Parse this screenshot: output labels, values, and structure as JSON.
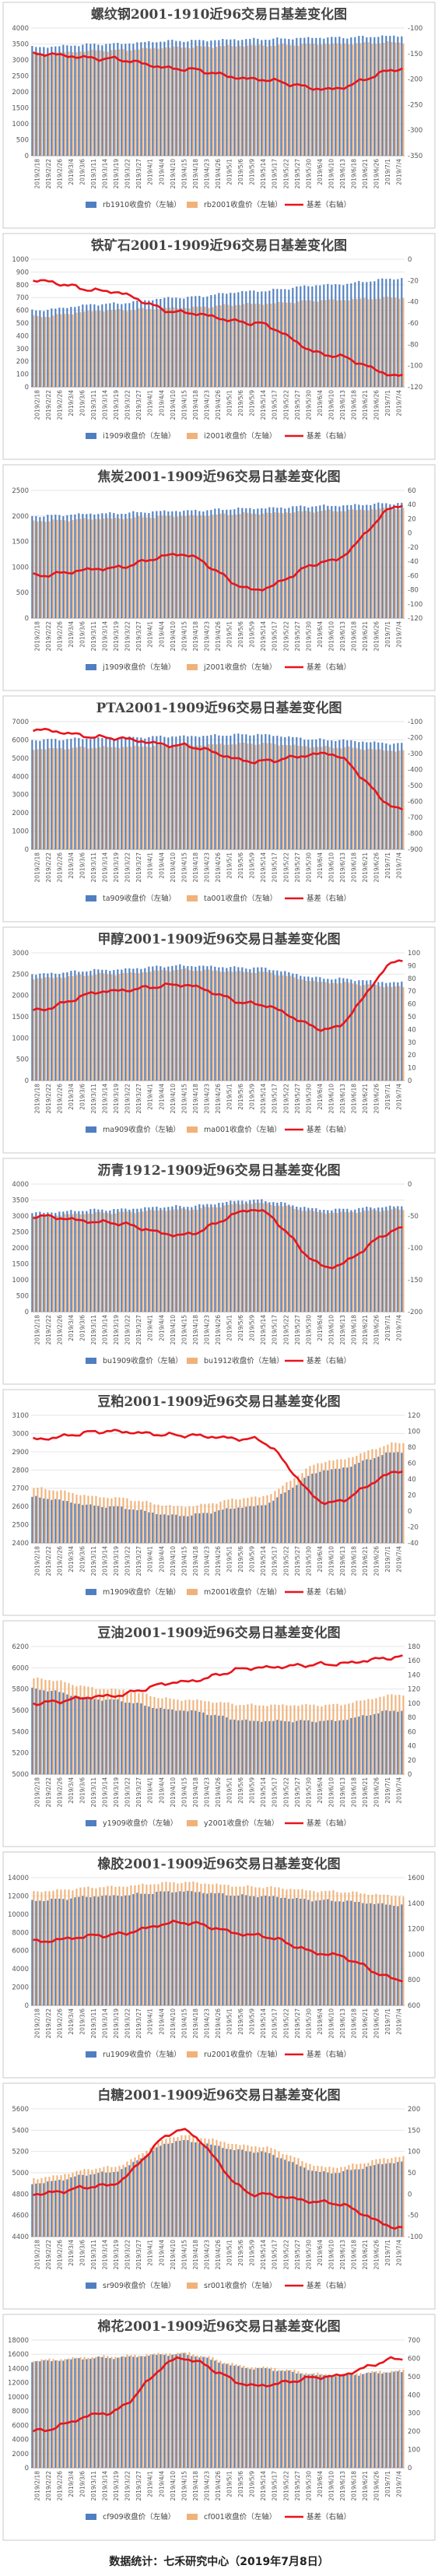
{
  "footer": "数据统计：七禾研究中心（2019年7月8日）",
  "colors": {
    "left_series_a": "#4f7fc0",
    "left_series_b": "#f0b27a",
    "basis_line": "#e8141b",
    "border": "#c9c9c9",
    "grid": "#e6e6e6",
    "title_text": "#444444"
  },
  "x_dates": [
    "2019/2/18",
    "2019/2/22",
    "2019/2/26",
    "2019/3/4",
    "2019/3/6",
    "2019/3/11",
    "2019/3/14",
    "2019/3/19",
    "2019/3/22",
    "2019/3/27",
    "2019/4/1",
    "2019/4/4",
    "2019/4/10",
    "2019/4/15",
    "2019/4/18",
    "2019/4/23",
    "2019/4/26",
    "2019/5/1",
    "2019/5/6",
    "2019/5/9",
    "2019/5/14",
    "2019/5/17",
    "2019/5/22",
    "2019/5/27",
    "2019/5/30",
    "2019/6/4",
    "2019/6/10",
    "2019/6/13",
    "2019/6/18",
    "2019/6/21",
    "2019/6/26",
    "2019/7/1",
    "2019/7/4"
  ],
  "chart_data": [
    {
      "type": "bar+line",
      "title": "螺纹钢2001-1910近96交易日基差变化图",
      "legend": [
        "rb1910收盘价（左轴）",
        "rb2001收盘价（左轴）",
        "基差（右轴）"
      ],
      "left_axis": {
        "min": 0,
        "max": 4000,
        "ticks": [
          0,
          500,
          1000,
          1500,
          2000,
          2500,
          3000,
          3500,
          4000
        ]
      },
      "right_axis": {
        "min": -350,
        "max": -100,
        "ticks": [
          -100,
          -150,
          -200,
          -250,
          -300,
          -350
        ]
      },
      "bars_a": [
        3400,
        3500,
        3600,
        3650,
        3700,
        3750
      ],
      "bars_b": [
        3200,
        3300,
        3400,
        3450,
        3500,
        3550
      ],
      "line": [
        -150,
        -160,
        -180,
        -200,
        -220,
        -180
      ]
    },
    {
      "type": "bar+line",
      "title": "铁矿石2001-1909近96交易日基差变化图",
      "legend": [
        "i1909收盘价（左轴）",
        "i2001收盘价（左轴）",
        "基差（右轴）"
      ],
      "left_axis": {
        "min": 0,
        "max": 1000,
        "ticks": [
          0,
          100,
          200,
          300,
          400,
          500,
          600,
          700,
          800,
          900,
          1000
        ]
      },
      "right_axis": {
        "min": -120,
        "max": 0,
        "ticks": [
          0,
          -20,
          -40,
          -60,
          -80,
          -100,
          -120
        ]
      },
      "bars_a": [
        600,
        650,
        700,
        750,
        800,
        850
      ],
      "bars_b": [
        550,
        600,
        620,
        650,
        680,
        700
      ],
      "line": [
        -20,
        -30,
        -50,
        -60,
        -90,
        -110
      ]
    },
    {
      "type": "bar+line",
      "title": "焦炭2001-1909近96交易日基差变化图",
      "legend": [
        "j1909收盘价（左轴）",
        "j2001收盘价（左轴）",
        "基差（右轴）"
      ],
      "left_axis": {
        "min": 0,
        "max": 2500,
        "ticks": [
          0,
          500,
          1000,
          1500,
          2000,
          2500
        ]
      },
      "right_axis": {
        "min": -120,
        "max": 60,
        "ticks": [
          60,
          40,
          20,
          0,
          -20,
          -40,
          -60,
          -80,
          -100,
          -120
        ]
      },
      "bars_a": [
        2000,
        2050,
        2100,
        2150,
        2200,
        2250
      ],
      "bars_b": [
        1900,
        1950,
        2000,
        2050,
        2100,
        2150
      ],
      "line": [
        -60,
        -50,
        -30,
        -80,
        -40,
        40
      ]
    },
    {
      "type": "bar+line",
      "title": "PTA2001-1909近96交易日基差变化图",
      "legend": [
        "ta909收盘价（左轴）",
        "ta001收盘价（左轴）",
        "基差（右轴）"
      ],
      "left_axis": {
        "min": 0,
        "max": 7000,
        "ticks": [
          0,
          1000,
          2000,
          3000,
          4000,
          5000,
          6000,
          7000
        ]
      },
      "right_axis": {
        "min": -900,
        "max": -100,
        "ticks": [
          -100,
          -200,
          -300,
          -400,
          -500,
          -600,
          -700,
          -800,
          -900
        ]
      },
      "bars_a": [
        6000,
        6100,
        6200,
        6300,
        6000,
        5800
      ],
      "bars_b": [
        5500,
        5600,
        5700,
        5800,
        5600,
        5400
      ],
      "line": [
        -150,
        -200,
        -250,
        -350,
        -300,
        -650
      ]
    },
    {
      "type": "bar+line",
      "title": "甲醇2001-1909近96交易日基差变化图",
      "legend": [
        "ma909收盘价（左轴）",
        "ma001收盘价（左轴）",
        "基差（右轴）"
      ],
      "left_axis": {
        "min": 0,
        "max": 3000,
        "ticks": [
          0,
          500,
          1000,
          1500,
          2000,
          2500,
          3000
        ]
      },
      "right_axis": {
        "min": 0,
        "max": 100,
        "ticks": [
          100,
          90,
          80,
          70,
          60,
          50,
          40,
          30,
          20,
          10,
          0
        ]
      },
      "bars_a": [
        2500,
        2600,
        2700,
        2650,
        2400,
        2300
      ],
      "bars_b": [
        2400,
        2500,
        2600,
        2550,
        2300,
        2200
      ],
      "line": [
        55,
        70,
        75,
        60,
        40,
        95
      ]
    },
    {
      "type": "bar+line",
      "title": "沥青1912-1909近96交易日基差变化图",
      "legend": [
        "bu1909收盘价（左轴）",
        "bu1912收盘价（左轴）",
        "基差（右轴）"
      ],
      "left_axis": {
        "min": 0,
        "max": 4000,
        "ticks": [
          0,
          500,
          1000,
          1500,
          2000,
          2500,
          3000,
          3500,
          4000
        ]
      },
      "right_axis": {
        "min": -200,
        "max": 0,
        "ticks": [
          0,
          -50,
          -100,
          -150,
          -200
        ]
      },
      "bars_a": [
        3100,
        3200,
        3300,
        3500,
        3200,
        3300
      ],
      "bars_b": [
        3000,
        3100,
        3200,
        3400,
        3100,
        3200
      ],
      "line": [
        -50,
        -60,
        -80,
        -40,
        -130,
        -70
      ]
    },
    {
      "type": "bar+line",
      "title": "豆粕2001-1909近96交易日基差变化图",
      "legend": [
        "m1909收盘价（左轴）",
        "m2001收盘价（左轴）",
        "基差（右轴）"
      ],
      "left_axis": {
        "min": 2400,
        "max": 3100,
        "ticks": [
          2400,
          2500,
          2600,
          2700,
          2800,
          2900,
          3000,
          3100
        ]
      },
      "right_axis": {
        "min": -40,
        "max": 120,
        "ticks": [
          120,
          100,
          80,
          60,
          40,
          20,
          0,
          -20,
          -40
        ]
      },
      "bars_a": [
        2650,
        2600,
        2550,
        2600,
        2800,
        2900
      ],
      "bars_b": [
        2700,
        2650,
        2600,
        2650,
        2850,
        2950
      ],
      "line": [
        90,
        100,
        95,
        90,
        10,
        50
      ]
    },
    {
      "type": "bar+line",
      "title": "豆油2001-1909近96交易日基差变化图",
      "legend": [
        "y1909收盘价（左轴）",
        "y2001收盘价（左轴）",
        "基差（右轴）"
      ],
      "left_axis": {
        "min": 5000,
        "max": 6200,
        "ticks": [
          5000,
          5200,
          5400,
          5600,
          5800,
          6000,
          6200
        ]
      },
      "right_axis": {
        "min": 0,
        "max": 180,
        "ticks": [
          180,
          160,
          140,
          120,
          100,
          80,
          60,
          40,
          20,
          0
        ]
      },
      "bars_a": [
        5800,
        5700,
        5600,
        5500,
        5500,
        5600
      ],
      "bars_b": [
        5900,
        5800,
        5700,
        5650,
        5650,
        5750
      ],
      "line": [
        100,
        110,
        130,
        150,
        155,
        165
      ]
    },
    {
      "type": "bar+line",
      "title": "橡胶2001-1909近96交易日基差变化图",
      "legend": [
        "ru1909收盘价（左轴）",
        "ru2001收盘价（左轴）",
        "基差（右轴）"
      ],
      "left_axis": {
        "min": 0,
        "max": 14000,
        "ticks": [
          0,
          2000,
          4000,
          6000,
          8000,
          10000,
          12000,
          14000
        ]
      },
      "right_axis": {
        "min": 600,
        "max": 1600,
        "ticks": [
          1600,
          1400,
          1200,
          1000,
          800,
          600
        ]
      },
      "bars_a": [
        11500,
        12000,
        12500,
        12000,
        11500,
        11000
      ],
      "bars_b": [
        12500,
        13000,
        13500,
        13000,
        12500,
        12000
      ],
      "line": [
        1100,
        1150,
        1250,
        1150,
        1000,
        800
      ]
    },
    {
      "type": "bar+line",
      "title": "白糖2001-1909近96交易日基差变化图",
      "legend": [
        "sr909收盘价（左轴）",
        "sr001收盘价（左轴）",
        "基差（右轴）"
      ],
      "left_axis": {
        "min": 4400,
        "max": 5600,
        "ticks": [
          4400,
          4600,
          4800,
          5000,
          5200,
          5400,
          5600
        ]
      },
      "right_axis": {
        "min": -100,
        "max": 200,
        "ticks": [
          200,
          150,
          100,
          50,
          0,
          -50,
          -100
        ]
      },
      "bars_a": [
        4900,
        5000,
        5300,
        5200,
        5000,
        5100
      ],
      "bars_b": [
        4950,
        5050,
        5350,
        5250,
        5050,
        5150
      ],
      "line": [
        0,
        20,
        150,
        0,
        -20,
        -80
      ]
    },
    {
      "type": "bar+line",
      "title": "棉花2001-1909近96交易日基差变化图",
      "legend": [
        "cf909收盘价（左轴）",
        "cf001收盘价（左轴）",
        "基差（右轴）"
      ],
      "left_axis": {
        "min": 0,
        "max": 18000,
        "ticks": [
          0,
          2000,
          4000,
          6000,
          8000,
          10000,
          12000,
          14000,
          16000,
          18000
        ]
      },
      "right_axis": {
        "min": 0,
        "max": 700,
        "ticks": [
          700,
          600,
          500,
          400,
          300,
          200,
          100,
          0
        ]
      },
      "bars_a": [
        15000,
        15500,
        16000,
        14000,
        13000,
        13500
      ],
      "bars_b": [
        15200,
        15700,
        16200,
        14200,
        13200,
        13700
      ],
      "line": [
        200,
        300,
        600,
        450,
        500,
        600
      ]
    }
  ]
}
